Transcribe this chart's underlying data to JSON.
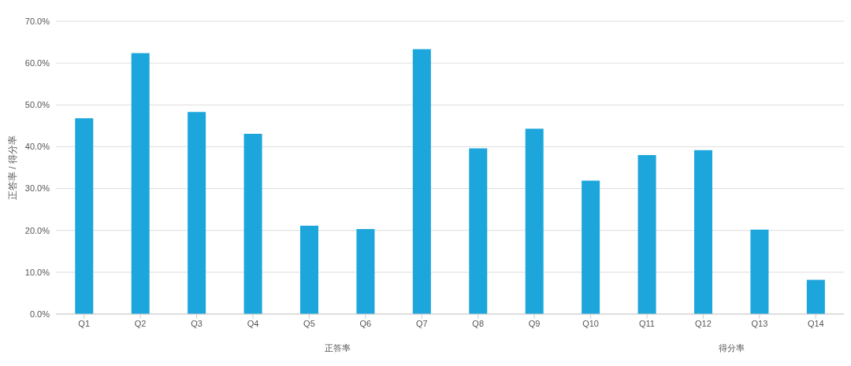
{
  "chart_data": {
    "type": "bar",
    "ylabel": "正答率 / 得分率",
    "categories": [
      "Q1",
      "Q2",
      "Q3",
      "Q4",
      "Q5",
      "Q6",
      "Q7",
      "Q8",
      "Q9",
      "Q10",
      "Q11",
      "Q12",
      "Q13",
      "Q14"
    ],
    "values": [
      46.8,
      62.4,
      48.3,
      43.1,
      21.1,
      20.3,
      63.3,
      39.6,
      44.3,
      31.9,
      38.0,
      39.2,
      20.2,
      8.2
    ],
    "color": "#1ca6db",
    "ylim": [
      0,
      70
    ],
    "yticks": [
      {
        "value": 0,
        "label": "0.0%"
      },
      {
        "value": 10,
        "label": "10.0%"
      },
      {
        "value": 20,
        "label": "20.0%"
      },
      {
        "value": 30,
        "label": "30.0%"
      },
      {
        "value": 40,
        "label": "40.0%"
      },
      {
        "value": 50,
        "label": "50.0%"
      },
      {
        "value": 60,
        "label": "60.0%"
      },
      {
        "value": 70,
        "label": "70.0%"
      }
    ],
    "grid": "y",
    "annotations": [
      "正答率",
      "得分率"
    ]
  }
}
